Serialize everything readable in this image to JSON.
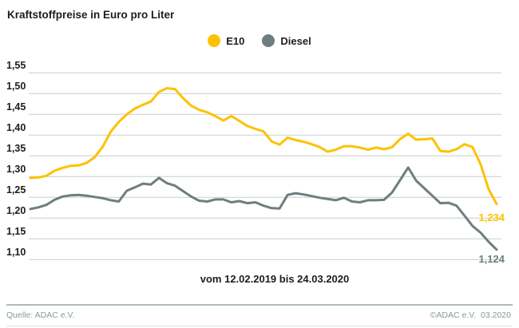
{
  "page": {
    "title": "Kraftstoffpreise in Euro pro Liter"
  },
  "footer": {
    "source": "Quelle: ADAC e.V.",
    "copyright": "©ADAC e.V.  03.2020"
  },
  "colors": {
    "e10": "#FCC200",
    "diesel": "#6E7E80",
    "grid": "#C9CECE",
    "text_dark": "#1D1D1B",
    "footer_text": "#8C9898",
    "divider": "#AEBABA"
  },
  "chart_data": {
    "type": "line",
    "title": "Kraftstoffpreise in Euro pro Liter",
    "xlabel": "vom 12.02.2019 bis 24.03.2020",
    "ylabel": "",
    "ylim": [
      1.1,
      1.55
    ],
    "y_tick_labels": [
      "1,55",
      "1,50",
      "1,45",
      "1,40",
      "1,35",
      "1,30",
      "1,25",
      "1,20",
      "1,15",
      "1,10"
    ],
    "grid": true,
    "legend_position": "top-center",
    "x_start": "12.02.2019",
    "x_end": "24.03.2020",
    "series": [
      {
        "name": "E10",
        "color": "#FCC200",
        "end_label": "1,234",
        "values": [
          1.297,
          1.298,
          1.302,
          1.314,
          1.321,
          1.326,
          1.327,
          1.333,
          1.347,
          1.372,
          1.408,
          1.432,
          1.45,
          1.464,
          1.473,
          1.481,
          1.504,
          1.513,
          1.511,
          1.489,
          1.471,
          1.461,
          1.455,
          1.446,
          1.435,
          1.446,
          1.434,
          1.422,
          1.415,
          1.409,
          1.385,
          1.377,
          1.394,
          1.388,
          1.384,
          1.378,
          1.371,
          1.36,
          1.365,
          1.373,
          1.373,
          1.37,
          1.365,
          1.37,
          1.366,
          1.371,
          1.391,
          1.403,
          1.389,
          1.39,
          1.392,
          1.362,
          1.36,
          1.366,
          1.378,
          1.371,
          1.33,
          1.27,
          1.234
        ]
      },
      {
        "name": "Diesel",
        "color": "#6E7E80",
        "end_label": "1,124",
        "values": [
          1.222,
          1.226,
          1.232,
          1.244,
          1.252,
          1.255,
          1.256,
          1.254,
          1.251,
          1.248,
          1.243,
          1.24,
          1.266,
          1.274,
          1.283,
          1.281,
          1.297,
          1.284,
          1.278,
          1.265,
          1.252,
          1.242,
          1.24,
          1.245,
          1.245,
          1.238,
          1.241,
          1.236,
          1.238,
          1.23,
          1.224,
          1.223,
          1.256,
          1.26,
          1.257,
          1.253,
          1.249,
          1.246,
          1.243,
          1.249,
          1.24,
          1.238,
          1.243,
          1.243,
          1.244,
          1.262,
          1.292,
          1.322,
          1.29,
          1.272,
          1.254,
          1.236,
          1.237,
          1.23,
          1.206,
          1.181,
          1.165,
          1.143,
          1.124
        ]
      }
    ]
  }
}
